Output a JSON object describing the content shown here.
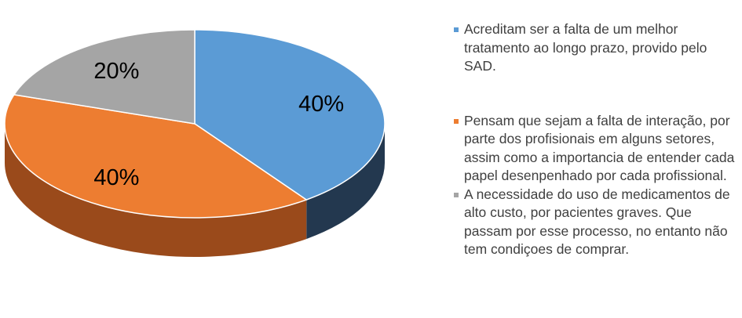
{
  "chart_data": {
    "type": "pie",
    "style": "3d",
    "slices": [
      {
        "label": "Acreditam ser a falta de um melhor tratamento ao longo prazo, provido pelo SAD.",
        "value": 40,
        "display": "40%",
        "color": "#5B9BD5",
        "side_color": "#23384F"
      },
      {
        "label": "Pensam que sejam a falta de interação, por parte dos profisionais em alguns setores, assim como a importancia de entender cada papel desenpenhado por cada profissional.",
        "value": 40,
        "display": "40%",
        "color": "#ED7D31",
        "side_color": "#9A4A1B"
      },
      {
        "label": "A necessidade do uso de medicamentos de alto custo, por pacientes graves. Que passam por esse processo, no entanto não tem condiçoes de comprar.",
        "value": 20,
        "display": "20%",
        "color": "#A5A5A5",
        "side_color": "#6B6B6B"
      }
    ],
    "legend_position": "right"
  }
}
